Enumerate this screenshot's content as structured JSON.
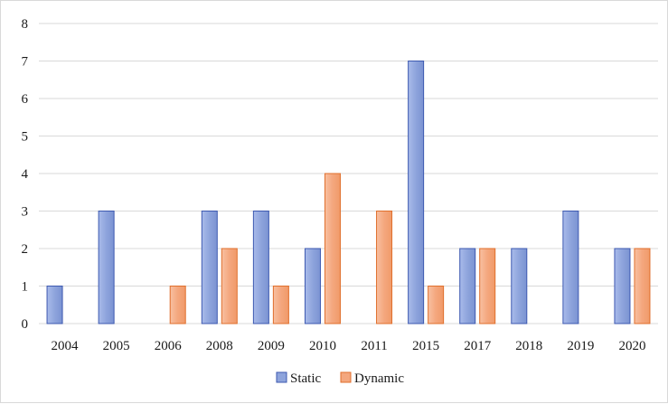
{
  "chart_data": {
    "type": "bar",
    "title": "",
    "xlabel": "",
    "ylabel": "",
    "categories": [
      "2004",
      "2005",
      "2006",
      "2008",
      "2009",
      "2010",
      "2011",
      "2015",
      "2017",
      "2018",
      "2019",
      "2020"
    ],
    "series": [
      {
        "name": "Static",
        "values": [
          1,
          3,
          0,
          3,
          3,
          2,
          0,
          7,
          2,
          2,
          3,
          2
        ],
        "color": "#8ea4dc"
      },
      {
        "name": "Dynamic",
        "values": [
          0,
          0,
          1,
          2,
          1,
          4,
          3,
          1,
          2,
          0,
          0,
          2
        ],
        "color": "#f4a77e"
      }
    ],
    "ylim": [
      0,
      8
    ],
    "yticks": [
      0,
      1,
      2,
      3,
      4,
      5,
      6,
      7,
      8
    ],
    "grid": true,
    "legend_position": "bottom",
    "colors": {
      "static_fill": "#8ea4dc",
      "static_stroke": "#3d59b0",
      "dynamic_fill": "#f4a77e",
      "dynamic_stroke": "#e06f2c",
      "grid": "#d9d9d9"
    }
  }
}
